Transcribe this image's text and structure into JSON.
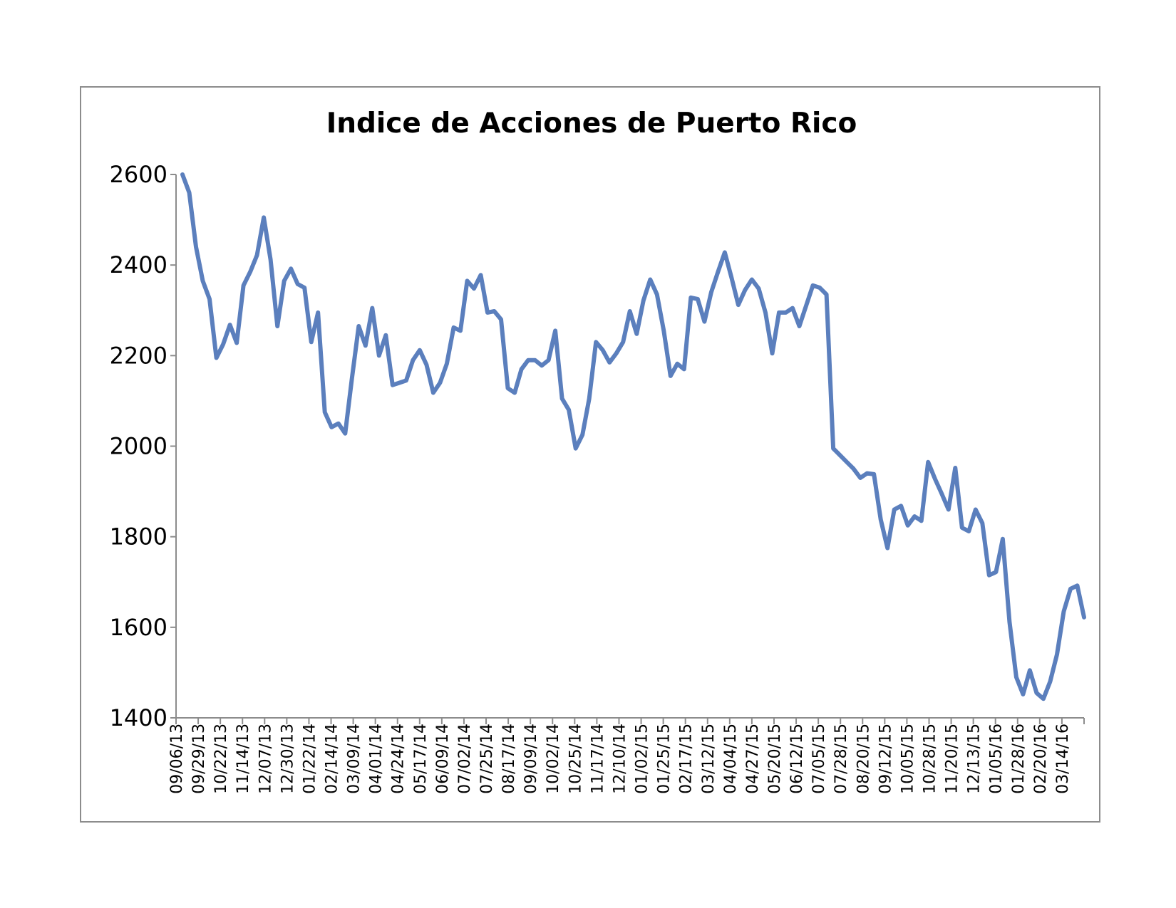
{
  "chart_data": {
    "type": "line",
    "title": "Indice de Acciones de Puerto Rico",
    "xlabel": "",
    "ylabel": "",
    "ylim": [
      1400,
      2600
    ],
    "yticks": [
      1400,
      1600,
      1800,
      2000,
      2200,
      2400,
      2600
    ],
    "grid": false,
    "legend": "none",
    "line_color": "#5b7fbd",
    "axis_color": "#8c8c8c",
    "x_tick_labels": [
      "09/06/13",
      "09/29/13",
      "10/22/13",
      "11/14/13",
      "12/07/13",
      "12/30/13",
      "01/22/14",
      "02/14/14",
      "03/09/14",
      "04/01/14",
      "04/24/14",
      "05/17/14",
      "06/09/14",
      "07/02/14",
      "07/25/14",
      "08/17/14",
      "09/09/14",
      "10/02/14",
      "10/25/14",
      "11/17/14",
      "12/10/14",
      "01/02/15",
      "01/25/15",
      "02/17/15",
      "03/12/15",
      "04/04/15",
      "04/27/15",
      "05/20/15",
      "06/12/15",
      "07/05/15",
      "07/28/15",
      "08/20/15",
      "09/12/15",
      "10/05/15",
      "10/28/15",
      "11/20/15",
      "12/13/15",
      "01/05/16",
      "01/28/16",
      "02/20/16",
      "03/14/16"
    ],
    "series": [
      {
        "values": [
          2600,
          2560,
          2440,
          2365,
          2325,
          2195,
          2225,
          2268,
          2228,
          2355,
          2385,
          2422,
          2505,
          2412,
          2265,
          2365,
          2392,
          2358,
          2350,
          2230,
          2295,
          2075,
          2042,
          2050,
          2028,
          2150,
          2265,
          2222,
          2305,
          2200,
          2245,
          2135,
          2140,
          2145,
          2190,
          2212,
          2180,
          2118,
          2140,
          2182,
          2262,
          2255,
          2365,
          2348,
          2378,
          2295,
          2298,
          2280,
          2128,
          2118,
          2170,
          2190,
          2190,
          2178,
          2190,
          2255,
          2105,
          2080,
          1995,
          2025,
          2105,
          2230,
          2212,
          2185,
          2205,
          2230,
          2298,
          2248,
          2322,
          2368,
          2335,
          2255,
          2155,
          2182,
          2170,
          2328,
          2325,
          2275,
          2340,
          2385,
          2428,
          2372,
          2312,
          2345,
          2368,
          2348,
          2295,
          2205,
          2295,
          2295,
          2305,
          2265,
          2310,
          2355,
          2350,
          2335,
          1995,
          1980,
          1965,
          1950,
          1930,
          1940,
          1938,
          1838,
          1775,
          1860,
          1868,
          1825,
          1845,
          1835,
          1965,
          1928,
          1895,
          1860,
          1952,
          1820,
          1812,
          1860,
          1830,
          1715,
          1722,
          1795,
          1612,
          1490,
          1452,
          1505,
          1455,
          1442,
          1480,
          1540,
          1635,
          1685,
          1692,
          1622
        ]
      }
    ]
  }
}
